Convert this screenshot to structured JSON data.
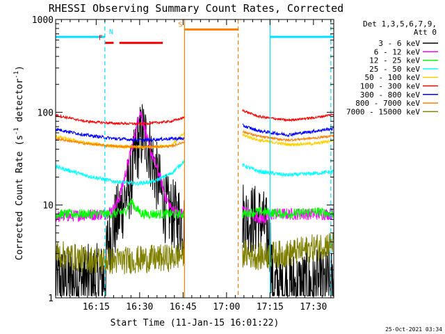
{
  "chart_data": {
    "type": "line",
    "title": "RHESSI Observing Summary Count Rates, Corrected",
    "xlabel": "Start Time (11-Jan-15 16:01:22)",
    "ylabel_main": "Corrected Count Rate (s",
    "ylabel_sup1": "-1",
    "ylabel_mid": " detector",
    "ylabel_sup2": "-1",
    "ylabel_end": ")",
    "y_scale": "log",
    "ylim": [
      1,
      1000
    ],
    "xlim_minutes": [
      0,
      96
    ],
    "xticks": [
      {
        "t": 14,
        "label": "16:15"
      },
      {
        "t": 29,
        "label": "16:30"
      },
      {
        "t": 44,
        "label": "16:45"
      },
      {
        "t": 59,
        "label": "17:00"
      },
      {
        "t": 74,
        "label": "17:15"
      },
      {
        "t": 89,
        "label": "17:30"
      }
    ],
    "yticks": [
      {
        "v": 1,
        "label": "1"
      },
      {
        "v": 10,
        "label": "10"
      },
      {
        "v": 100,
        "label": "100"
      },
      {
        "v": 1000,
        "label": "1000"
      }
    ],
    "legend_header": [
      "Det 1,3,5,6,7,9,",
      "Att 0"
    ],
    "legend_position": "right",
    "data_gap_minutes": [
      44.5,
      64.5
    ],
    "series": [
      {
        "name": "3 - 6 keV",
        "color": "#000000",
        "values": [
          [
            0,
            1.5
          ],
          [
            17,
            1.6
          ],
          [
            18,
            4
          ],
          [
            22,
            8
          ],
          [
            26,
            18
          ],
          [
            28,
            40
          ],
          [
            30,
            60
          ],
          [
            32,
            45
          ],
          [
            34,
            25
          ],
          [
            36,
            15
          ],
          [
            38,
            9
          ],
          [
            40,
            8
          ],
          [
            43,
            7
          ],
          [
            44.5,
            6
          ],
          [
            64.5,
            8
          ],
          [
            66,
            7
          ],
          [
            70,
            7
          ],
          [
            72,
            6
          ],
          [
            74,
            4
          ],
          [
            75,
            1.3
          ],
          [
            96,
            1.4
          ]
        ]
      },
      {
        "name": "6 - 12 keV",
        "color": "#ff00ff",
        "values": [
          [
            0,
            7.5
          ],
          [
            17,
            8
          ],
          [
            20,
            9
          ],
          [
            22,
            12
          ],
          [
            25,
            28
          ],
          [
            28,
            70
          ],
          [
            29,
            105
          ],
          [
            30,
            85
          ],
          [
            32,
            45
          ],
          [
            34,
            30
          ],
          [
            36,
            20
          ],
          [
            38,
            12
          ],
          [
            40,
            9
          ],
          [
            43,
            8
          ],
          [
            44.5,
            8
          ],
          [
            64.5,
            9
          ],
          [
            67,
            8
          ],
          [
            72,
            7
          ],
          [
            75,
            8
          ],
          [
            80,
            8
          ],
          [
            96,
            8
          ]
        ]
      },
      {
        "name": "12 - 25 keV",
        "color": "#00ff00",
        "values": [
          [
            0,
            8
          ],
          [
            10,
            8
          ],
          [
            16,
            8
          ],
          [
            20,
            8
          ],
          [
            24,
            8.5
          ],
          [
            26,
            11
          ],
          [
            28,
            9
          ],
          [
            30,
            8
          ],
          [
            34,
            8
          ],
          [
            38,
            8
          ],
          [
            44.5,
            8
          ],
          [
            64.5,
            8
          ],
          [
            70,
            8.5
          ],
          [
            80,
            8
          ],
          [
            90,
            8.5
          ],
          [
            96,
            8
          ]
        ]
      },
      {
        "name": "25 - 50 keV",
        "color": "#00ffff",
        "values": [
          [
            0,
            26
          ],
          [
            10,
            21
          ],
          [
            20,
            18
          ],
          [
            28,
            17
          ],
          [
            34,
            18
          ],
          [
            40,
            22
          ],
          [
            44.5,
            30
          ],
          [
            64.5,
            27
          ],
          [
            70,
            23
          ],
          [
            80,
            21
          ],
          [
            90,
            22
          ],
          [
            96,
            23
          ]
        ]
      },
      {
        "name": "50 - 100 keV",
        "color": "#ffd000",
        "values": [
          [
            0,
            55
          ],
          [
            10,
            47
          ],
          [
            20,
            43
          ],
          [
            30,
            42
          ],
          [
            40,
            44
          ],
          [
            44.5,
            60
          ],
          [
            64.5,
            57
          ],
          [
            70,
            50
          ],
          [
            80,
            45
          ],
          [
            90,
            46
          ],
          [
            96,
            50
          ]
        ]
      },
      {
        "name": "100 - 300 keV",
        "color": "#ff0000",
        "values": [
          [
            0,
            93
          ],
          [
            10,
            80
          ],
          [
            20,
            76
          ],
          [
            30,
            75
          ],
          [
            40,
            80
          ],
          [
            44.5,
            88
          ],
          [
            64.5,
            105
          ],
          [
            70,
            90
          ],
          [
            80,
            82
          ],
          [
            90,
            88
          ],
          [
            96,
            95
          ]
        ]
      },
      {
        "name": "300 - 800 keV",
        "color": "#0000ff",
        "values": [
          [
            0,
            66
          ],
          [
            10,
            57
          ],
          [
            20,
            52
          ],
          [
            30,
            50
          ],
          [
            40,
            52
          ],
          [
            44.5,
            52
          ],
          [
            64.5,
            72
          ],
          [
            70,
            63
          ],
          [
            80,
            57
          ],
          [
            90,
            63
          ],
          [
            96,
            67
          ]
        ]
      },
      {
        "name": "800 - 7000 keV",
        "color": "#ff8000",
        "values": [
          [
            0,
            52
          ],
          [
            10,
            46
          ],
          [
            20,
            43
          ],
          [
            30,
            42
          ],
          [
            40,
            43
          ],
          [
            44.5,
            48
          ],
          [
            64.5,
            62
          ],
          [
            70,
            55
          ],
          [
            80,
            50
          ],
          [
            90,
            53
          ],
          [
            96,
            56
          ]
        ]
      },
      {
        "name": "7000 - 15000 keV",
        "color": "#808000",
        "values": [
          [
            0,
            3
          ],
          [
            10,
            2.6
          ],
          [
            20,
            2.5
          ],
          [
            30,
            2.6
          ],
          [
            40,
            2.7
          ],
          [
            44.5,
            3
          ],
          [
            64.5,
            3
          ],
          [
            70,
            2.8
          ],
          [
            80,
            3
          ],
          [
            90,
            3.5
          ],
          [
            96,
            4
          ]
        ]
      }
    ],
    "flags": [
      {
        "label": "N",
        "color": "#00e0ff",
        "value": 650,
        "segments": [
          [
            0,
            17
          ],
          [
            74,
            96
          ]
        ]
      },
      {
        "label": "F",
        "color": "#ff0000",
        "value": 560,
        "segments": [
          [
            17,
            20
          ],
          [
            22,
            37
          ]
        ]
      },
      {
        "label": "S",
        "color": "#ff8000",
        "value": 780,
        "segments": [
          [
            44.5,
            63
          ]
        ]
      }
    ],
    "vlines": [
      {
        "t": 17,
        "color": "#00e0ff",
        "style": "dashed"
      },
      {
        "t": 74,
        "color": "#00e0ff",
        "style": "solid"
      },
      {
        "t": 95,
        "color": "#00e0ff",
        "style": "dashed"
      },
      {
        "t": 44.5,
        "color": "#ff8000",
        "style": "solid"
      },
      {
        "t": 63,
        "color": "#ff8000",
        "style": "dashed"
      }
    ]
  },
  "footer": {
    "date": "25-Oct-2021 03:34"
  }
}
